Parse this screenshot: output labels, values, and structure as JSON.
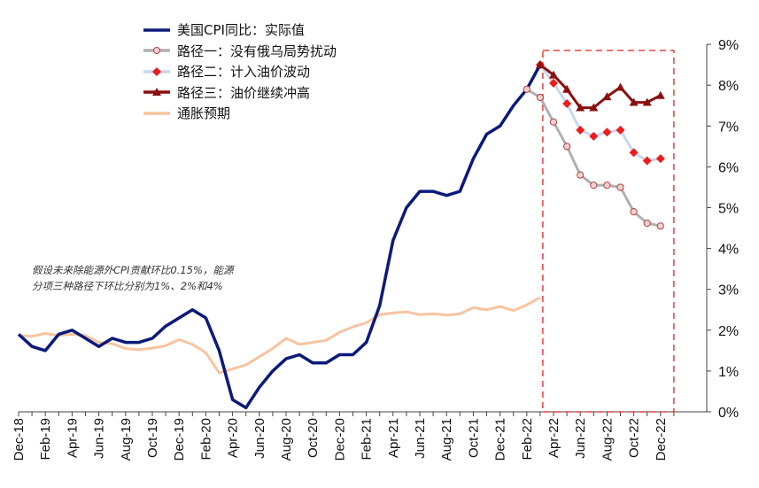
{
  "chart_data": {
    "type": "line",
    "y_axis": {
      "position": "right",
      "ylim": [
        0,
        9
      ],
      "ticks": [
        "0%",
        "1%",
        "2%",
        "3%",
        "4%",
        "5%",
        "6%",
        "7%",
        "8%",
        "9%"
      ]
    },
    "x_ticks": [
      "Dec-18",
      "Feb-19",
      "Apr-19",
      "Jun-19",
      "Aug-19",
      "Oct-19",
      "Dec-19",
      "Feb-20",
      "Apr-20",
      "Jun-20",
      "Aug-20",
      "Oct-20",
      "Dec-20",
      "Feb-21",
      "Apr-21",
      "Jun-21",
      "Aug-21",
      "Oct-21",
      "Dec-21",
      "Feb-22",
      "Apr-22",
      "Jun-22",
      "Aug-22",
      "Oct-22",
      "Dec-22"
    ],
    "projection_box": {
      "from_month": 39.2,
      "to_month": 49.0,
      "label": "projection window Mar-22 to Dec-22"
    },
    "series": [
      {
        "name": "美国CPI同比：实际值",
        "color": "#0b1a7a",
        "start_month": 0,
        "values": [
          1.9,
          1.6,
          1.5,
          1.9,
          2.0,
          1.8,
          1.6,
          1.8,
          1.7,
          1.7,
          1.8,
          2.1,
          2.3,
          2.5,
          2.3,
          1.5,
          0.3,
          0.1,
          0.6,
          1.0,
          1.3,
          1.4,
          1.2,
          1.2,
          1.4,
          1.4,
          1.7,
          2.6,
          4.2,
          5.0,
          5.4,
          5.4,
          5.3,
          5.4,
          6.2,
          6.8,
          7.0,
          7.5,
          7.9,
          8.5
        ]
      },
      {
        "name": "通胀预期",
        "color": "#f7c4a0",
        "start_month": 0,
        "values": [
          1.87,
          1.85,
          1.92,
          1.87,
          1.9,
          1.87,
          1.7,
          1.67,
          1.55,
          1.52,
          1.56,
          1.62,
          1.77,
          1.65,
          1.45,
          0.95,
          1.05,
          1.15,
          1.35,
          1.55,
          1.8,
          1.65,
          1.7,
          1.75,
          1.95,
          2.08,
          2.18,
          2.38,
          2.42,
          2.45,
          2.38,
          2.4,
          2.37,
          2.4,
          2.55,
          2.5,
          2.58,
          2.48,
          2.62,
          2.8
        ]
      },
      {
        "name": "路径一：没有俄乌局势扰动",
        "color": "#b0b0b0",
        "marker": "circle",
        "start_month": 38,
        "values": [
          7.9,
          7.7,
          7.1,
          6.5,
          5.8,
          5.55,
          5.55,
          5.5,
          4.9,
          4.62,
          4.55
        ]
      },
      {
        "name": "路径二：计入油价波动",
        "color": "#c9d6ee",
        "marker": "diamond",
        "start_month": 39,
        "values": [
          8.5,
          8.05,
          7.55,
          6.9,
          6.75,
          6.85,
          6.9,
          6.35,
          6.15,
          6.2
        ]
      },
      {
        "name": "路径三：油价继续冲高",
        "color": "#8b1010",
        "marker": "triangle",
        "start_month": 39,
        "values": [
          8.5,
          8.25,
          7.9,
          7.45,
          7.45,
          7.72,
          7.95,
          7.58,
          7.58,
          7.75
        ]
      }
    ]
  },
  "legend": [
    {
      "label": "美国CPI同比：实际值",
      "style": "navy-line"
    },
    {
      "label": "路径一：没有俄乌局势扰动",
      "style": "gray-circle"
    },
    {
      "label": "路径二：计入油价波动",
      "style": "red-diamond"
    },
    {
      "label": "路径三：油价继续冲高",
      "style": "darkred-triangle"
    },
    {
      "label": "通胀预期",
      "style": "peach-line"
    }
  ],
  "note": {
    "line1": "假设未来除能源外CPI贡献环比0.15%，能源",
    "line2": "分项三种路径下环比分别为1%、2%和4%"
  }
}
